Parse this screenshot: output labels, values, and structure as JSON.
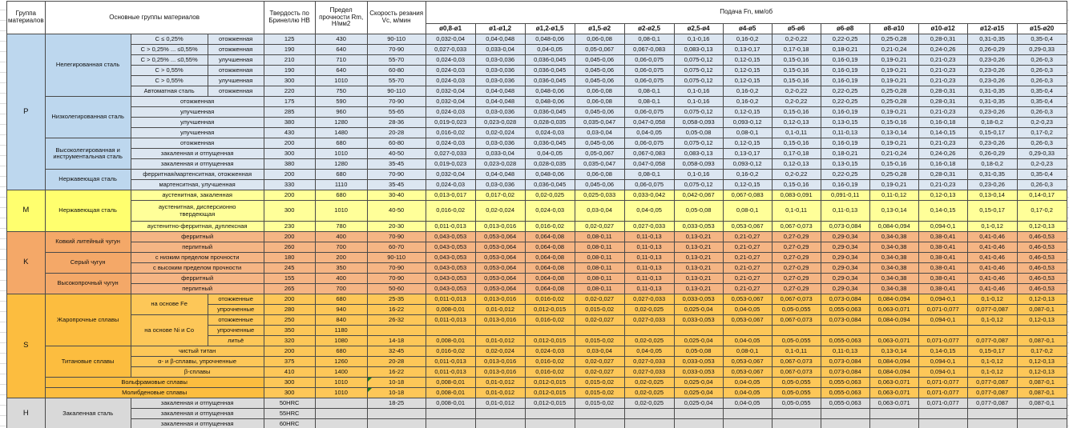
{
  "header": {
    "group": "Группа материалов",
    "materials": "Основные группы материалов",
    "hb": "Твердость по Бринеллю HB",
    "rm": "Предел прочности Rm, Н/мм2",
    "vc": "Скорость резания Vc, м/мин",
    "feed": "Подача Fn, мм/об",
    "diameters": [
      "ø0,8-ø1",
      "ø1-ø1,2",
      "ø1,2-ø1,5",
      "ø1,5-ø2",
      "ø2-ø2,5",
      "ø2,5-ø4",
      "ø4-ø5",
      "ø5-ø6",
      "ø6-ø8",
      "ø8-ø10",
      "ø10-ø12",
      "ø12-ø15",
      "ø15-ø20"
    ]
  },
  "colors": {
    "note_marker": "#1e7b1e",
    "border": "#4a4a4a"
  },
  "feed_sets": {
    "A": [
      "0,032-0,04",
      "0,04-0,048",
      "0,048-0,06",
      "0,06-0,08",
      "0,08-0,1",
      "0,1-0,16",
      "0,16-0,2",
      "0,2-0,22",
      "0,22-0,25",
      "0,25-0,28",
      "0,28-0,31",
      "0,31-0,35",
      "0,35-0,4"
    ],
    "B": [
      "0,027-0,033",
      "0,033-0,04",
      "0,04-0,05",
      "0,05-0,067",
      "0,067-0,083",
      "0,083-0,13",
      "0,13-0,17",
      "0,17-0,18",
      "0,18-0,21",
      "0,21-0,24",
      "0,24-0,26",
      "0,26-0,29",
      "0,29-0,33"
    ],
    "C": [
      "0,024-0,03",
      "0,03-0,036",
      "0,036-0,045",
      "0,045-0,06",
      "0,06-0,075",
      "0,075-0,12",
      "0,12-0,15",
      "0,15-0,16",
      "0,16-0,19",
      "0,19-0,21",
      "0,21-0,23",
      "0,23-0,26",
      "0,26-0,3"
    ],
    "D": [
      "0,019-0,023",
      "0,023-0,028",
      "0,028-0,035",
      "0,035-0,047",
      "0,047-0,058",
      "0,058-0,093",
      "0,093-0,12",
      "0,12-0,13",
      "0,13-0,15",
      "0,15-0,16",
      "0,16-0,18",
      "0,18-0,2",
      "0,2-0,23"
    ],
    "E": [
      "0,016-0,02",
      "0,02-0,024",
      "0,024-0,03",
      "0,03-0,04",
      "0,04-0,05",
      "0,05-0,08",
      "0,08-0,1",
      "0,1-0,11",
      "0,11-0,13",
      "0,13-0,14",
      "0,14-0,15",
      "0,15-0,17",
      "0,17-0,2"
    ],
    "M1": [
      "0,013-0,017",
      "0,017-0,02",
      "0,02-0,025",
      "0,025-0,033",
      "0,033-0,042",
      "0,042-0,067",
      "0,067-0,083",
      "0,083-0,091",
      "0,091-0,11",
      "0,11-0,12",
      "0,12-0,13",
      "0,13-0,14",
      "0,14-0,17"
    ],
    "S1": [
      "0,011-0,013",
      "0,013-0,016",
      "0,016-0,02",
      "0,02-0,027",
      "0,027-0,033",
      "0,033-0,053",
      "0,053-0,067",
      "0,067-0,073",
      "0,073-0,084",
      "0,084-0,094",
      "0,094-0,1",
      "0,1-0,12",
      "0,12-0,13"
    ],
    "S2": [
      "0,008-0,01",
      "0,01-0,012",
      "0,012-0,015",
      "0,015-0,02",
      "0,02-0,025",
      "0,025-0,04",
      "0,04-0,05",
      "0,05-0,055",
      "0,055-0,063",
      "0,063-0,071",
      "0,071-0,077",
      "0,077-0,087",
      "0,087-0,1"
    ],
    "K": [
      "0,043-0,053",
      "0,053-0,064",
      "0,064-0,08",
      "0,08-0,11",
      "0,11-0,13",
      "0,13-0,21",
      "0,21-0,27",
      "0,27-0,29",
      "0,29-0,34",
      "0,34-0,38",
      "0,38-0,41",
      "0,41-0,46",
      "0,46-0,53"
    ]
  },
  "sections": [
    {
      "code": "P",
      "label_color": "#bdd7ee",
      "data_color": "#dce6f1",
      "families": [
        {
          "name": "Нелегированная сталь",
          "rows": [
            {
              "sub": "C ≤ 0,25%",
              "state": "отожженная",
              "hb": "125",
              "rm": "430",
              "vc": "90-110",
              "fs": "A"
            },
            {
              "sub": "C > 0,25% ... ≤0,55%",
              "state": "отожженная",
              "hb": "190",
              "rm": "640",
              "vc": "70-90",
              "fs": "B"
            },
            {
              "sub": "C > 0,25% ... ≤0,55%",
              "state": "улучшенная",
              "hb": "210",
              "rm": "710",
              "vc": "55-70",
              "fs": "C"
            },
            {
              "sub": "C > 0,55%",
              "state": "отожженная",
              "hb": "190",
              "rm": "640",
              "vc": "60-80",
              "fs": "C"
            },
            {
              "sub": "C > 0,55%",
              "state": "улучшенная",
              "hb": "300",
              "rm": "1010",
              "vc": "55-70",
              "fs": "C"
            },
            {
              "sub": "Автоматная сталь",
              "state": "отожженная",
              "hb": "220",
              "rm": "750",
              "vc": "90-110",
              "fs": "A"
            }
          ]
        },
        {
          "name": "Низколегированная сталь",
          "rows": [
            {
              "state_span": "отожженная",
              "hb": "175",
              "rm": "590",
              "vc": "70-90",
              "fs": "A"
            },
            {
              "state_span": "улучшенная",
              "hb": "285",
              "rm": "960",
              "vc": "55-65",
              "fs": "C"
            },
            {
              "state_span": "улучшенная",
              "hb": "380",
              "rm": "1280",
              "vc": "28-36",
              "fs": "D"
            },
            {
              "state_span": "улучшенная",
              "hb": "430",
              "rm": "1480",
              "vc": "20-28",
              "fs": "E"
            }
          ]
        },
        {
          "name": "Высоколегированная и инструментальная сталь",
          "rows": [
            {
              "state_span": "отожженная",
              "hb": "200",
              "rm": "680",
              "vc": "60-80",
              "fs": "C"
            },
            {
              "state_span": "закаленная и отпущенная",
              "hb": "300",
              "rm": "1010",
              "vc": "40-50",
              "fs": "B"
            },
            {
              "state_span": "закаленная и отпущенная",
              "hb": "380",
              "rm": "1280",
              "vc": "35-45",
              "fs": "D"
            }
          ]
        },
        {
          "name": "Нержавеющая сталь",
          "rows": [
            {
              "state_span": "ферритная/мартенситная, отожженная",
              "hb": "200",
              "rm": "680",
              "vc": "70-90",
              "fs": "A"
            },
            {
              "state_span": "мартенситная, улучшенная",
              "hb": "330",
              "rm": "1110",
              "vc": "35-45",
              "fs": "C"
            }
          ]
        }
      ]
    },
    {
      "code": "M",
      "label_color": "#ffff6e",
      "data_color": "#ffff99",
      "families": [
        {
          "name": "Нержавеющая сталь",
          "rows": [
            {
              "state_span": "аустенитная, закаленная",
              "hb": "200",
              "rm": "680",
              "vc": "30-40",
              "fs": "M1"
            },
            {
              "state_span": "аустенитная, дисперсионно\nтвердеющая",
              "h": 26,
              "hb": "300",
              "rm": "1010",
              "vc": "40-50",
              "fs": "E"
            },
            {
              "state_span": "аустенитно-ферритная, дуплексная",
              "hb": "230",
              "rm": "780",
              "vc": "20-30",
              "fs": "S1"
            }
          ]
        }
      ]
    },
    {
      "code": "K",
      "label_color": "#f4a868",
      "data_color": "#f5b584",
      "families": [
        {
          "name": "Ковкий литейный чугун",
          "rows": [
            {
              "state_span": "ферритный",
              "hb": "200",
              "rm": "400",
              "vc": "70-90",
              "fs": "K"
            },
            {
              "state_span": "перлитный",
              "hb": "260",
              "rm": "700",
              "vc": "60-70",
              "fs": "K"
            }
          ]
        },
        {
          "name": "Серый чугун",
          "rows": [
            {
              "state_span": "с низким пределом прочности",
              "hb": "180",
              "rm": "200",
              "vc": "90-110",
              "fs": "K"
            },
            {
              "state_span": "с высоким пределом прочности",
              "hb": "245",
              "rm": "350",
              "vc": "70-90",
              "fs": "K"
            }
          ]
        },
        {
          "name": "Высокопрочный чугун",
          "rows": [
            {
              "state_span": "ферритный",
              "hb": "155",
              "rm": "400",
              "vc": "70-90",
              "fs": "K"
            },
            {
              "state_span": "перлитный",
              "hb": "265",
              "rm": "700",
              "vc": "50-60",
              "fs": "K"
            }
          ]
        }
      ]
    },
    {
      "code": "S",
      "label_color": "#fcbd3f",
      "data_color": "#fdc758",
      "families": [
        {
          "name": "Жаропрочные сплавы",
          "subgroups": [
            {
              "name": "на основе Fe",
              "rows": [
                {
                  "state": "отожженные",
                  "hb": "200",
                  "rm": "680",
                  "vc": "25-35",
                  "fs": "S1"
                },
                {
                  "state": "упрочненные",
                  "hb": "280",
                  "rm": "940",
                  "vc": "16-22",
                  "fs": "S2"
                }
              ]
            },
            {
              "name": "на основе Ni и Co",
              "rows": [
                {
                  "state": "отожженные",
                  "hb": "250",
                  "rm": "840",
                  "vc": "26-32",
                  "fs": "S1"
                },
                {
                  "state": "упрочненные",
                  "hb": "350",
                  "rm": "1180",
                  "vc": "",
                  "fs": ""
                },
                {
                  "state": "литьё",
                  "hb": "320",
                  "rm": "1080",
                  "vc": "14-18",
                  "fs": "S2"
                }
              ]
            }
          ]
        },
        {
          "name": "Титановые сплавы",
          "rows": [
            {
              "state_span": "чистый титан",
              "hb": "200",
              "rm": "680",
              "vc": "32-45",
              "fs": "E"
            },
            {
              "state_span": "α- и β-сплавы, упрочненные",
              "hb": "375",
              "rm": "1260",
              "vc": "20-28",
              "fs": "S1"
            },
            {
              "state_span": "β-сплавы",
              "hb": "410",
              "rm": "1400",
              "vc": "16-22",
              "fs": "S1"
            }
          ]
        },
        {
          "name": "Вольфрамовые сплавы",
          "span3": true,
          "rows": [
            {
              "hb": "300",
              "rm": "1010",
              "vc": "10-18",
              "vc_marker": true,
              "fs": "S2"
            }
          ]
        },
        {
          "name": "Молибденовые сплавы",
          "span3": true,
          "rows": [
            {
              "hb": "300",
              "rm": "1010",
              "vc": "10-18",
              "vc_marker": true,
              "fs": "S2"
            }
          ]
        }
      ]
    },
    {
      "code": "H",
      "label_color": "#d9d9d9",
      "data_color": "#dcdcdc",
      "families": [
        {
          "name": "Закаленная сталь",
          "rows": [
            {
              "state_span": "закаленная и отпущенная",
              "hb": "50HRC",
              "rm": "",
              "vc": "18-25",
              "fs": "S2"
            },
            {
              "state_span": "закаленная и отпущенная",
              "hb": "55HRC",
              "rm": "",
              "vc": "",
              "fs": ""
            },
            {
              "state_span": "закаленная и отпущенная",
              "hb": "60HRC",
              "rm": "",
              "vc": "",
              "fs": ""
            }
          ]
        }
      ]
    }
  ]
}
